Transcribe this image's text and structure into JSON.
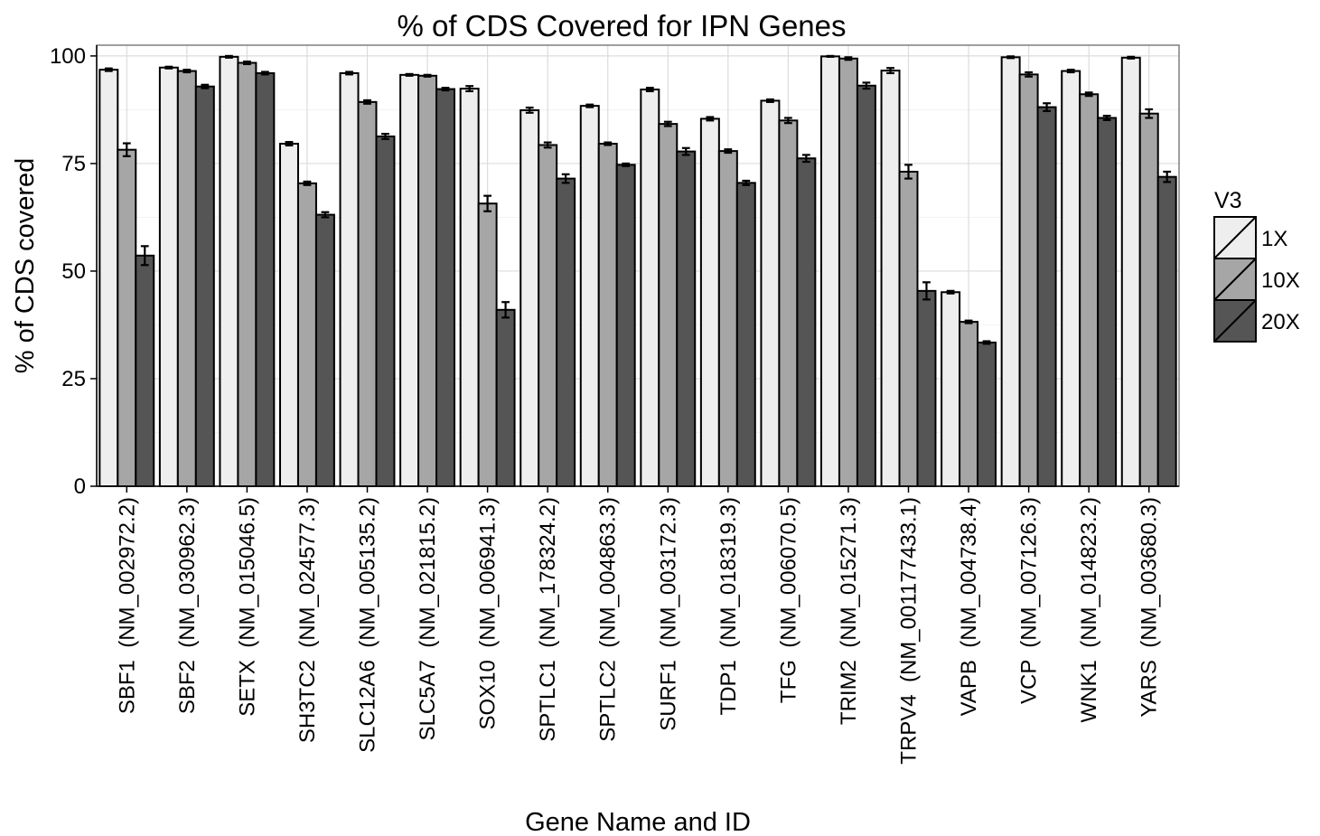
{
  "chart_data": {
    "type": "bar",
    "title": "% of CDS Covered for IPN Genes",
    "xlabel": "Gene Name and ID",
    "ylabel": "% of CDS covered",
    "ylim": [
      0,
      102.5
    ],
    "yticks": [
      0,
      25,
      50,
      75,
      100
    ],
    "grid": true,
    "legend_title": "V3",
    "legend_position": "right",
    "categories": [
      "SBF1  (NM_002972.2)",
      "SBF2  (NM_030962.3)",
      "SETX  (NM_015046.5)",
      "SH3TC2  (NM_024577.3)",
      "SLC12A6  (NM_005135.2)",
      "SLC5A7  (NM_021815.2)",
      "SOX10  (NM_006941.3)",
      "SPTLC1  (NM_178324.2)",
      "SPTLC2  (NM_004863.3)",
      "SURF1  (NM_003172.3)",
      "TDP1  (NM_018319.3)",
      "TFG  (NM_006070.5)",
      "TRIM2  (NM_015271.3)",
      "TRPV4  (NM_001177433.1)",
      "VAPB  (NM_004738.4)",
      "VCP  (NM_007126.3)",
      "WNK1  (NM_014823.2)",
      "YARS  (NM_003680.3)"
    ],
    "series": [
      {
        "name": "1X",
        "color": "#eeeeee",
        "values": [
          96.8,
          97.3,
          99.8,
          79.6,
          96.0,
          95.6,
          92.4,
          87.4,
          88.4,
          92.2,
          85.4,
          89.6,
          99.9,
          96.6,
          45.1,
          99.7,
          96.5,
          99.6
        ],
        "errors": [
          0.3,
          0.2,
          0.2,
          0.4,
          0.3,
          0.2,
          0.6,
          0.6,
          0.3,
          0.4,
          0.4,
          0.3,
          0.1,
          0.6,
          0.3,
          0.2,
          0.3,
          0.2
        ]
      },
      {
        "name": "10X",
        "color": "#a6a6a6",
        "values": [
          78.2,
          96.5,
          98.4,
          70.4,
          89.3,
          95.4,
          65.7,
          79.3,
          79.6,
          84.2,
          77.9,
          85.0,
          99.4,
          73.1,
          38.2,
          95.7,
          91.1,
          86.6
        ],
        "errors": [
          1.5,
          0.3,
          0.3,
          0.4,
          0.4,
          0.2,
          1.8,
          0.6,
          0.3,
          0.5,
          0.4,
          0.6,
          0.3,
          1.6,
          0.3,
          0.5,
          0.4,
          1.0
        ]
      },
      {
        "name": "20X",
        "color": "#555555",
        "values": [
          53.6,
          92.9,
          96.0,
          63.1,
          81.3,
          92.3,
          41.0,
          71.5,
          74.7,
          77.8,
          70.5,
          76.2,
          93.1,
          45.4,
          33.4,
          88.1,
          85.6,
          71.9
        ],
        "errors": [
          2.2,
          0.4,
          0.3,
          0.6,
          0.6,
          0.3,
          1.8,
          1.0,
          0.3,
          0.8,
          0.5,
          0.8,
          0.7,
          2.0,
          0.3,
          0.9,
          0.5,
          1.2
        ]
      }
    ]
  }
}
